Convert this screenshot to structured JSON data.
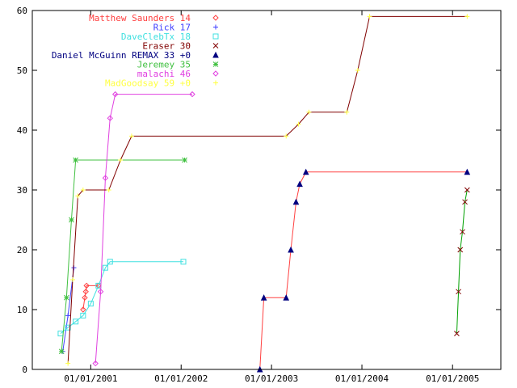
{
  "chart_data": {
    "type": "line",
    "title": "",
    "xlabel": "",
    "ylabel": "",
    "x_type": "date",
    "xlim": [
      "2000-05-10",
      "2005-07-15"
    ],
    "ylim": [
      0,
      60
    ],
    "yticks": [
      0,
      10,
      20,
      30,
      40,
      50,
      60
    ],
    "xticks": [
      "2001-01-01",
      "2002-01-01",
      "2003-01-01",
      "2004-01-01",
      "2005-01-01"
    ],
    "xtick_labels": [
      "01/01/2001",
      "01/01/2002",
      "01/01/2003",
      "01/01/2004",
      "01/01/2005"
    ],
    "grid": false,
    "legend_position": "top-left",
    "series": [
      {
        "name": "Matthew Saunders 14",
        "color": "#ff4040",
        "marker": "diamond",
        "points": [
          [
            "2000-12-01",
            10
          ],
          [
            "2000-12-08",
            12
          ],
          [
            "2000-12-12",
            13
          ],
          [
            "2000-12-15",
            14
          ],
          [
            "2001-02-01",
            14
          ]
        ]
      },
      {
        "name": "Rick 17",
        "color": "#4040ff",
        "marker": "plus",
        "points": [
          [
            "2000-09-10",
            3
          ],
          [
            "2000-10-01",
            9
          ],
          [
            "2000-10-25",
            17
          ]
        ]
      },
      {
        "name": "DaveClebTx 18",
        "color": "#40e0e0",
        "marker": "square",
        "points": [
          [
            "2000-09-01",
            6
          ],
          [
            "2000-10-01",
            7
          ],
          [
            "2000-11-01",
            8
          ],
          [
            "2000-12-01",
            9
          ],
          [
            "2001-01-01",
            11
          ],
          [
            "2001-02-01",
            14
          ],
          [
            "2001-03-01",
            17
          ],
          [
            "2001-03-20",
            18
          ],
          [
            "2002-01-10",
            18
          ]
        ]
      },
      {
        "name": "Eraser 30",
        "color": "#800000",
        "marker": "x",
        "line_color": "#00a000",
        "points": [
          [
            "2005-01-18",
            6
          ],
          [
            "2005-01-25",
            13
          ],
          [
            "2005-02-01",
            20
          ],
          [
            "2005-02-10",
            23
          ],
          [
            "2005-02-20",
            28
          ],
          [
            "2005-03-01",
            30
          ]
        ]
      },
      {
        "name": "Daniel McGuinn    REMAX 33 +0",
        "color": "#000080",
        "marker": "triangle",
        "line_color": "#ff4040",
        "points": [
          [
            "2002-11-15",
            0
          ],
          [
            "2002-12-01",
            12
          ],
          [
            "2003-03-01",
            12
          ],
          [
            "2003-03-20",
            20
          ],
          [
            "2003-04-10",
            28
          ],
          [
            "2003-04-25",
            31
          ],
          [
            "2003-05-20",
            33
          ],
          [
            "2005-03-01",
            33
          ]
        ]
      },
      {
        "name": "Jeremey 35",
        "color": "#40c040",
        "marker": "star",
        "points": [
          [
            "2000-09-05",
            3
          ],
          [
            "2000-09-25",
            12
          ],
          [
            "2000-10-15",
            25
          ],
          [
            "2000-11-01",
            35
          ],
          [
            "2002-01-15",
            35
          ]
        ]
      },
      {
        "name": "malachi 46",
        "color": "#e040e0",
        "marker": "diamond",
        "points": [
          [
            "2001-01-20",
            1
          ],
          [
            "2001-02-10",
            13
          ],
          [
            "2001-03-01",
            32
          ],
          [
            "2001-03-20",
            42
          ],
          [
            "2001-04-10",
            46
          ],
          [
            "2002-02-15",
            46
          ]
        ]
      },
      {
        "name": "MadGoodsay 59 +0",
        "color": "#ffff40",
        "marker": "plus",
        "line_color": "#800000",
        "points": [
          [
            "2000-10-01",
            1
          ],
          [
            "2000-10-20",
            15
          ],
          [
            "2000-11-10",
            29
          ],
          [
            "2000-12-01",
            30
          ],
          [
            "2001-03-15",
            30
          ],
          [
            "2001-05-01",
            35
          ],
          [
            "2001-06-15",
            39
          ],
          [
            "2003-03-01",
            39
          ],
          [
            "2003-04-20",
            41
          ],
          [
            "2003-06-01",
            43
          ],
          [
            "2003-11-01",
            43
          ],
          [
            "2003-12-15",
            50
          ],
          [
            "2004-02-01",
            59
          ],
          [
            "2005-03-01",
            59
          ]
        ]
      }
    ]
  }
}
